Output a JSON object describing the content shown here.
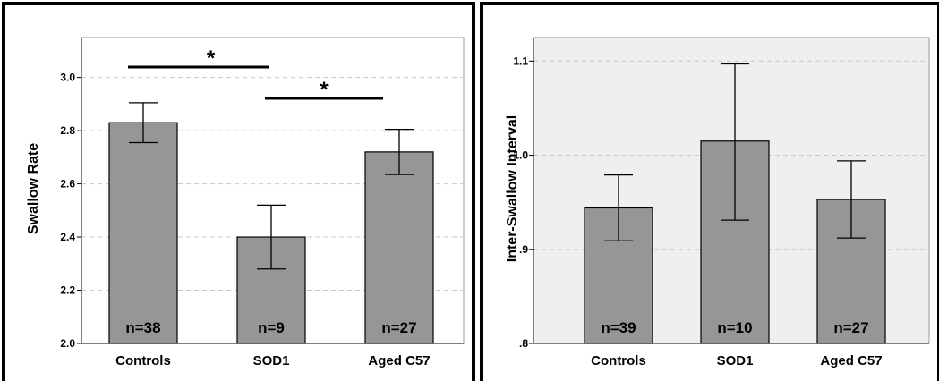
{
  "chart_data": [
    {
      "type": "bar",
      "ylabel": "Swallow Rate",
      "categories": [
        "Controls",
        "SOD1",
        "Aged C57"
      ],
      "values": [
        2.83,
        2.4,
        2.72
      ],
      "error_low": [
        2.755,
        2.28,
        2.635
      ],
      "error_high": [
        2.905,
        2.52,
        2.805
      ],
      "bar_labels": [
        "n=38",
        "n=9",
        "n=27"
      ],
      "ylim": [
        2.0,
        3.15
      ],
      "yticks": [
        2.0,
        2.2,
        2.4,
        2.6,
        2.8,
        3.0
      ],
      "ytick_labels": [
        "2.0",
        "2.2",
        "2.4",
        "2.6",
        "2.8",
        "3.0"
      ],
      "grid": true,
      "background": "#ffffff",
      "bar_color": "#969696",
      "significance": [
        {
          "from": 0,
          "to": 1,
          "label": "*"
        },
        {
          "from": 1,
          "to": 2,
          "label": "*"
        }
      ]
    },
    {
      "type": "bar",
      "ylabel": "Inter-Swallow Interval",
      "categories": [
        "Controls",
        "SOD1",
        "Aged C57"
      ],
      "values": [
        0.944,
        1.015,
        0.953
      ],
      "error_low": [
        0.909,
        0.931,
        0.912
      ],
      "error_high": [
        0.979,
        1.097,
        0.994
      ],
      "bar_labels": [
        "n=39",
        "n=10",
        "n=27"
      ],
      "ylim": [
        0.8,
        1.125
      ],
      "yticks": [
        0.8,
        0.9,
        1.0,
        1.1
      ],
      "ytick_labels": [
        ".8",
        ".9",
        "1.0",
        "1.1"
      ],
      "grid": true,
      "background": "#efefef",
      "bar_color": "#969696",
      "significance": []
    }
  ]
}
